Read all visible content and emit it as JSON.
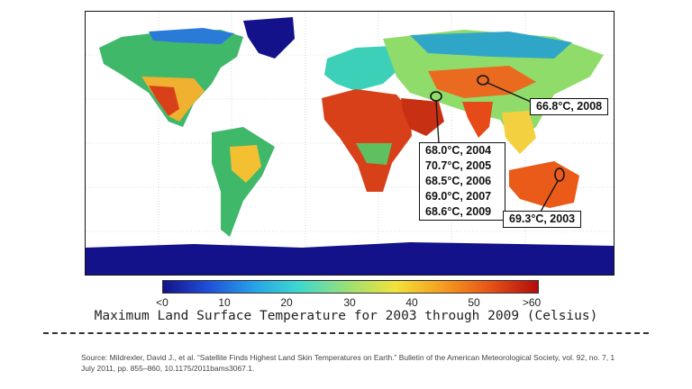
{
  "callouts": {
    "mideast": [
      "68.0°C, 2004",
      "70.7°C, 2005",
      "68.5°C, 2006",
      "69.0°C, 2007",
      "68.6°C, 2009"
    ],
    "china": "66.8°C, 2008",
    "australia": "69.3°C, 2003"
  },
  "colorbar": {
    "ticks": [
      "<0",
      "10",
      "20",
      "30",
      "40",
      "50",
      ">60"
    ],
    "colors": [
      "#14128a",
      "#1f4fd8",
      "#27a0e8",
      "#3cd8d0",
      "#a0e070",
      "#f2e23a",
      "#f5a020",
      "#ea5a18",
      "#b30c0c"
    ]
  },
  "title": "Maximum Land Surface Temperature for 2003 through 2009 (Celsius)",
  "source": "Source: Mildrexler, David J., et al. “Satellite Finds Highest Land Skin Temperatures on Earth.” Bulletin of the American Meteorological Society, vol. 92, no. 7, 1 July 2011, pp. 855–860, 10.1175/2011bams3067.1."
}
